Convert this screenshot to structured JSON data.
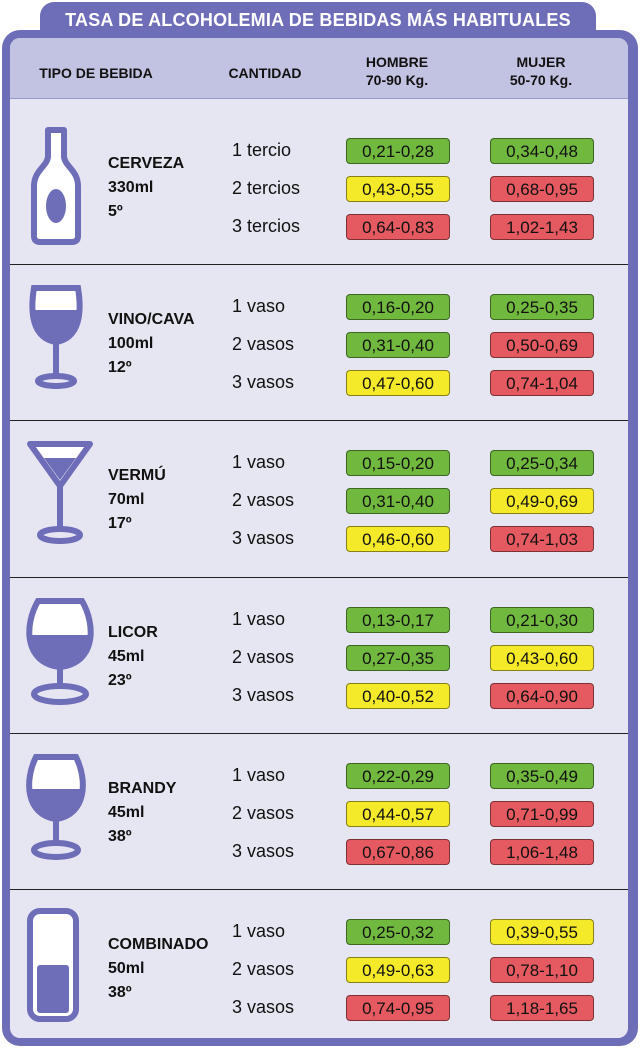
{
  "title": "TASA DE ALCOHOLEMIA DE BEBIDAS MÁS HABITUALES",
  "headers": {
    "tipo": "TIPO DE BEBIDA",
    "cantidad": "CANTIDAD",
    "hombre": "HOMBRE",
    "hombre_peso": "70-90 Kg.",
    "mujer": "MUJER",
    "mujer_peso": "50-70 Kg."
  },
  "colors": {
    "green": "#71b83f",
    "yellow": "#f4ea2a",
    "red": "#e55a61",
    "accent": "#6d6db8"
  },
  "drinks": [
    {
      "name": "CERVEZA",
      "volume": "330ml",
      "degrees": "5º",
      "icon": "beer-bottle-icon",
      "rows": [
        {
          "qty": "1 tercio",
          "hombre": "0,21-0,28",
          "hombre_level": "green",
          "mujer": "0,34-0,48",
          "mujer_level": "green"
        },
        {
          "qty": "2 tercios",
          "hombre": "0,43-0,55",
          "hombre_level": "yellow",
          "mujer": "0,68-0,95",
          "mujer_level": "red"
        },
        {
          "qty": "3 tercios",
          "hombre": "0,64-0,83",
          "hombre_level": "red",
          "mujer": "1,02-1,43",
          "mujer_level": "red"
        }
      ]
    },
    {
      "name": "VINO/CAVA",
      "volume": "100ml",
      "degrees": "12º",
      "icon": "wine-glass-icon",
      "rows": [
        {
          "qty": "1 vaso",
          "hombre": "0,16-0,20",
          "hombre_level": "green",
          "mujer": "0,25-0,35",
          "mujer_level": "green"
        },
        {
          "qty": "2 vasos",
          "hombre": "0,31-0,40",
          "hombre_level": "green",
          "mujer": "0,50-0,69",
          "mujer_level": "red"
        },
        {
          "qty": "3 vasos",
          "hombre": "0,47-0,60",
          "hombre_level": "yellow",
          "mujer": "0,74-1,04",
          "mujer_level": "red"
        }
      ]
    },
    {
      "name": "VERMÚ",
      "volume": "70ml",
      "degrees": "17º",
      "icon": "martini-glass-icon",
      "rows": [
        {
          "qty": "1 vaso",
          "hombre": "0,15-0,20",
          "hombre_level": "green",
          "mujer": "0,25-0,34",
          "mujer_level": "green"
        },
        {
          "qty": "2 vasos",
          "hombre": "0,31-0,40",
          "hombre_level": "green",
          "mujer": "0,49-0,69",
          "mujer_level": "yellow"
        },
        {
          "qty": "3 vasos",
          "hombre": "0,46-0,60",
          "hombre_level": "yellow",
          "mujer": "0,74-1,03",
          "mujer_level": "red"
        }
      ]
    },
    {
      "name": "LICOR",
      "volume": "45ml",
      "degrees": "23º",
      "icon": "liqueur-glass-icon",
      "rows": [
        {
          "qty": "1 vaso",
          "hombre": "0,13-0,17",
          "hombre_level": "green",
          "mujer": "0,21-0,30",
          "mujer_level": "green"
        },
        {
          "qty": "2 vasos",
          "hombre": "0,27-0,35",
          "hombre_level": "green",
          "mujer": "0,43-0,60",
          "mujer_level": "yellow"
        },
        {
          "qty": "3 vasos",
          "hombre": "0,40-0,52",
          "hombre_level": "yellow",
          "mujer": "0,64-0,90",
          "mujer_level": "red"
        }
      ]
    },
    {
      "name": "BRANDY",
      "volume": "45ml",
      "degrees": "38º",
      "icon": "brandy-glass-icon",
      "rows": [
        {
          "qty": "1 vaso",
          "hombre": "0,22-0,29",
          "hombre_level": "green",
          "mujer": "0,35-0,49",
          "mujer_level": "green"
        },
        {
          "qty": "2 vasos",
          "hombre": "0,44-0,57",
          "hombre_level": "yellow",
          "mujer": "0,71-0,99",
          "mujer_level": "red"
        },
        {
          "qty": "3 vasos",
          "hombre": "0,67-0,86",
          "hombre_level": "red",
          "mujer": "1,06-1,48",
          "mujer_level": "red"
        }
      ]
    },
    {
      "name": "COMBINADO",
      "volume": "50ml",
      "degrees": "38º",
      "icon": "highball-glass-icon",
      "rows": [
        {
          "qty": "1 vaso",
          "hombre": "0,25-0,32",
          "hombre_level": "green",
          "mujer": "0,39-0,55",
          "mujer_level": "yellow"
        },
        {
          "qty": "2 vasos",
          "hombre": "0,49-0,63",
          "hombre_level": "yellow",
          "mujer": "0,78-1,10",
          "mujer_level": "red"
        },
        {
          "qty": "3 vasos",
          "hombre": "0,74-0,95",
          "hombre_level": "red",
          "mujer": "1,18-1,65",
          "mujer_level": "red"
        }
      ]
    }
  ]
}
